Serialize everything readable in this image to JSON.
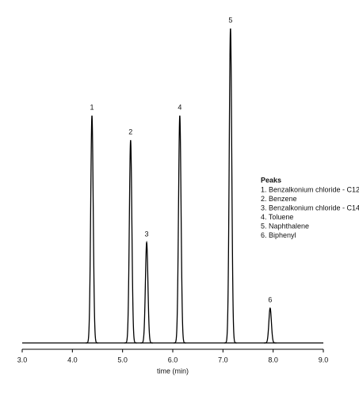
{
  "chart_data": {
    "type": "chromatogram",
    "x_label": "time (min)",
    "xlim": [
      3,
      9
    ],
    "xticks": [
      {
        "value": 3,
        "label": "3.0"
      },
      {
        "value": 4,
        "label": "4.0"
      },
      {
        "value": 5,
        "label": "5.0"
      },
      {
        "value": 6,
        "label": "6.0"
      },
      {
        "value": 7,
        "label": "7.0"
      },
      {
        "value": 8,
        "label": "8.0"
      },
      {
        "value": 9,
        "label": "9.0"
      }
    ],
    "ylim": [
      0,
      410
    ],
    "peaks": {
      "labels": [
        "1",
        "2",
        "3",
        "4",
        "5",
        "6"
      ],
      "x": [
        4.39,
        5.16,
        5.48,
        6.14,
        7.15,
        7.94
      ],
      "values": [
        287,
        256,
        127,
        287,
        397,
        44
      ]
    },
    "legend": {
      "title": "Peaks",
      "items": [
        "1. Benzalkonium chloride - C12",
        "2. Benzene",
        "3. Benzalkonium chloride - C14",
        "4. Toluene",
        "5. Naphthalene",
        "6. Biphenyl"
      ]
    }
  }
}
